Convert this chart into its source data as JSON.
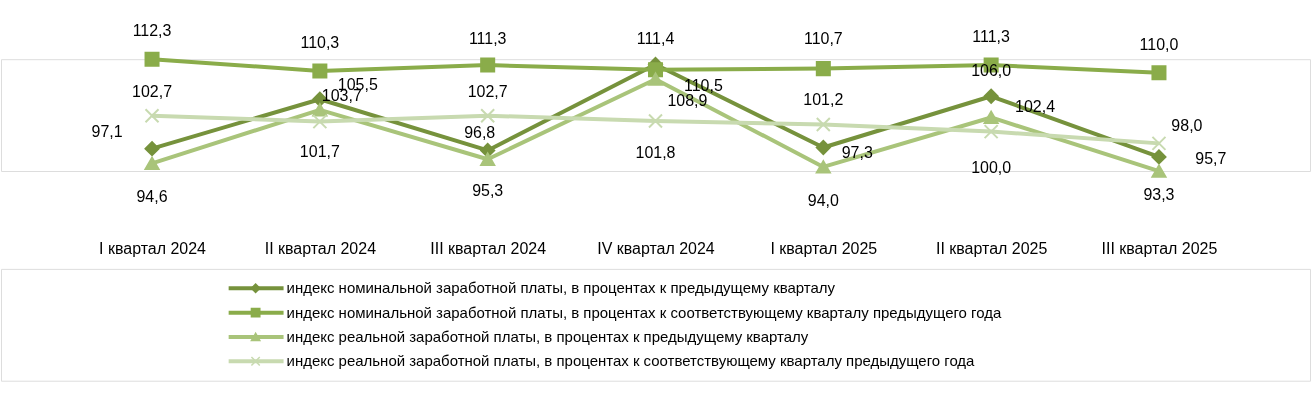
{
  "chart_data": {
    "type": "line",
    "categories": [
      "I квартал 2024",
      "II квартал 2024",
      "III квартал 2024",
      "IV квартал 2024",
      "I квартал 2025",
      "II квартал 2025",
      "III квартал 2025"
    ],
    "series": [
      {
        "name": "индекс номинальной заработной платы, в процентах к предыдущему кварталу",
        "color": "#76923c",
        "marker": "diamond",
        "values": [
          97.1,
          105.5,
          96.8,
          111.4,
          97.3,
          106.0,
          95.7
        ],
        "value_labels": [
          "97,1",
          "105,5",
          "96,8",
          "111,4",
          "97,3",
          "106,0",
          "95,7"
        ]
      },
      {
        "name": "индекс номинальной заработной платы, в процентах к соответствующему кварталу предыдущего года",
        "color": "#8aac4a",
        "marker": "square",
        "values": [
          112.3,
          110.3,
          111.3,
          110.5,
          110.7,
          111.3,
          110.0
        ],
        "value_labels": [
          "112,3",
          "110,3",
          "111,3",
          "110,5",
          "110,7",
          "111,3",
          "110,0"
        ]
      },
      {
        "name": "индекс реальной заработной платы, в процентах к предыдущему кварталу",
        "color": "#a9c47a",
        "marker": "triangle",
        "values": [
          94.6,
          103.7,
          95.3,
          108.9,
          94.0,
          102.4,
          93.3
        ],
        "value_labels": [
          "94,6",
          "103,7",
          "95,3",
          "108,9",
          "94,0",
          "102,4",
          "93,3"
        ]
      },
      {
        "name": "индекс реальной заработной платы, в процентах к соответствующему кварталу предыдущего года",
        "color": "#c8dab0",
        "marker": "cross",
        "values": [
          102.7,
          101.7,
          102.7,
          101.8,
          101.2,
          100.0,
          98.0
        ],
        "value_labels": [
          "102,7",
          "101,7",
          "102,7",
          "101,8",
          "101,2",
          "100,0",
          "98,0"
        ]
      }
    ],
    "legend": "bottom",
    "grid": false,
    "line_style": "solid"
  }
}
